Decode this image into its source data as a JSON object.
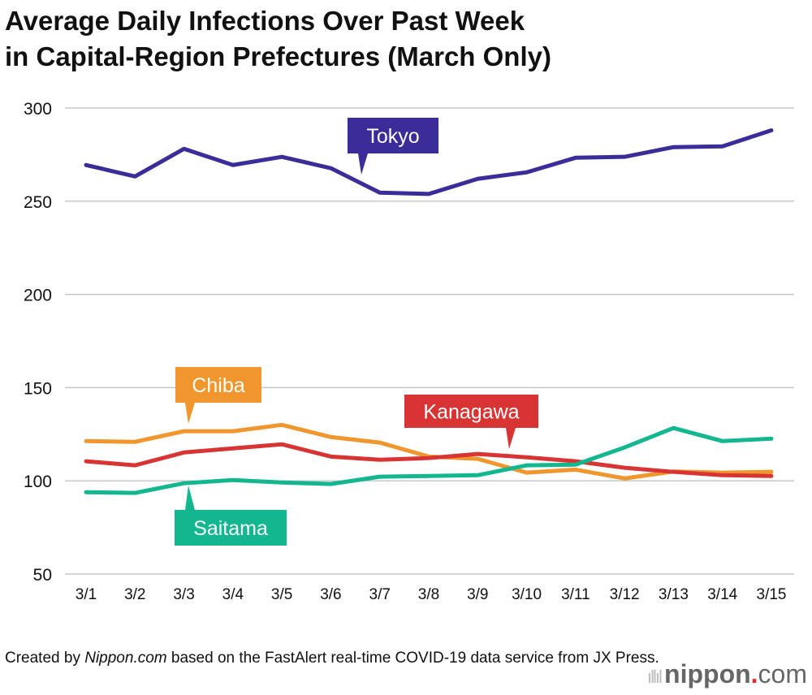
{
  "chart_data": {
    "type": "line",
    "title": "Average Daily Infections Over Past Week in Capital-Region Prefectures (March Only)",
    "title_lines": [
      "Average Daily Infections Over Past Week",
      "in Capital-Region Prefectures (March Only)"
    ],
    "xlabel": "",
    "ylabel": "",
    "categories": [
      "3/1",
      "3/2",
      "3/3",
      "3/4",
      "3/5",
      "3/6",
      "3/7",
      "3/8",
      "3/9",
      "3/10",
      "3/11",
      "3/12",
      "3/13",
      "3/14",
      "3/15"
    ],
    "ylim": [
      50,
      300
    ],
    "yticks": [
      50,
      100,
      150,
      200,
      250,
      300
    ],
    "grid": true,
    "legend": "direct labels",
    "series": [
      {
        "name": "Tokyo",
        "color": "#3a2d9a",
        "values": [
          269.4,
          263.3,
          278.1,
          269.4,
          273.8,
          267.7,
          254.6,
          253.9,
          262,
          265.5,
          273.3,
          273.8,
          279,
          279.4,
          288
        ]
      },
      {
        "name": "Chiba",
        "color": "#f0962d",
        "values": [
          121.3,
          120.9,
          126.6,
          126.6,
          130,
          123.5,
          120.5,
          113,
          111.8,
          104.4,
          106,
          101.3,
          105,
          104.4,
          104.8
        ]
      },
      {
        "name": "Kanagawa",
        "color": "#d93434",
        "values": [
          110.5,
          108.3,
          115.2,
          117.4,
          119.6,
          113,
          111.3,
          112.2,
          114.4,
          112.6,
          110.5,
          107,
          104.8,
          103,
          102.6
        ]
      },
      {
        "name": "Saitama",
        "color": "#12b68f",
        "values": [
          93.9,
          93.5,
          98.7,
          100.4,
          99.1,
          98.3,
          102.2,
          102.6,
          103,
          108.3,
          108.7,
          117.9,
          128.3,
          121.3,
          122.6
        ]
      }
    ]
  },
  "credit": {
    "prefix": "Created by ",
    "source": "Nippon.com",
    "suffix": " based on the FastAlert real-time COVID-19 data service from JX Press."
  },
  "logo": {
    "name": "nippon",
    "dot": ".",
    "tld": "com"
  }
}
